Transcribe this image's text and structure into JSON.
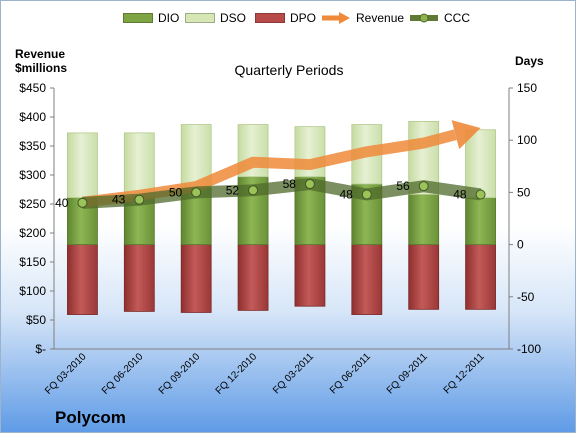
{
  "chart_data": {
    "type": "bar",
    "title": "Quarterly Periods",
    "company": "Polycom",
    "left_axis_label_line1": "Revenue",
    "left_axis_label_line2": "$millions",
    "right_axis_label": "Days",
    "categories": [
      "FQ 03-2010",
      "FQ 06-2010",
      "FQ 09-2010",
      "FQ 12-2010",
      "FQ 03-2011",
      "FQ 06-2011",
      "FQ 09-2011",
      "FQ 12-2011"
    ],
    "left_ticks": [
      "$-",
      "$50",
      "$100",
      "$150",
      "$200",
      "$250",
      "$300",
      "$350",
      "$400",
      "$450"
    ],
    "right_ticks": [
      "-100",
      "-50",
      "0",
      "50",
      "100",
      "150"
    ],
    "left_ylim": [
      0,
      450
    ],
    "right_ylim": [
      -100,
      150
    ],
    "series": [
      {
        "name": "DIO",
        "color": "#7ea443",
        "axis": "right",
        "values": [
          45,
          45,
          55,
          65,
          65,
          58,
          48,
          45
        ]
      },
      {
        "name": "DSO",
        "color": "#d6e6b5",
        "axis": "right",
        "values": [
          62,
          62,
          60,
          50,
          48,
          57,
          70,
          65
        ]
      },
      {
        "name": "DPO",
        "color": "#b84a49",
        "axis": "right",
        "values": [
          67,
          64,
          65,
          63,
          59,
          67,
          62,
          62
        ]
      },
      {
        "name": "Revenue",
        "color": "#ee8a3a",
        "axis": "left",
        "values": [
          253,
          265,
          280,
          322,
          318,
          340,
          355,
          381
        ]
      },
      {
        "name": "CCC",
        "color": "#5f7a35",
        "axis": "right",
        "values": [
          40,
          43,
          50,
          52,
          58,
          48,
          56,
          48
        ]
      }
    ],
    "ccc_labels": [
      "40",
      "43",
      "50",
      "52",
      "58",
      "48",
      "56",
      "48"
    ],
    "legend_position": "top",
    "grid": false
  }
}
